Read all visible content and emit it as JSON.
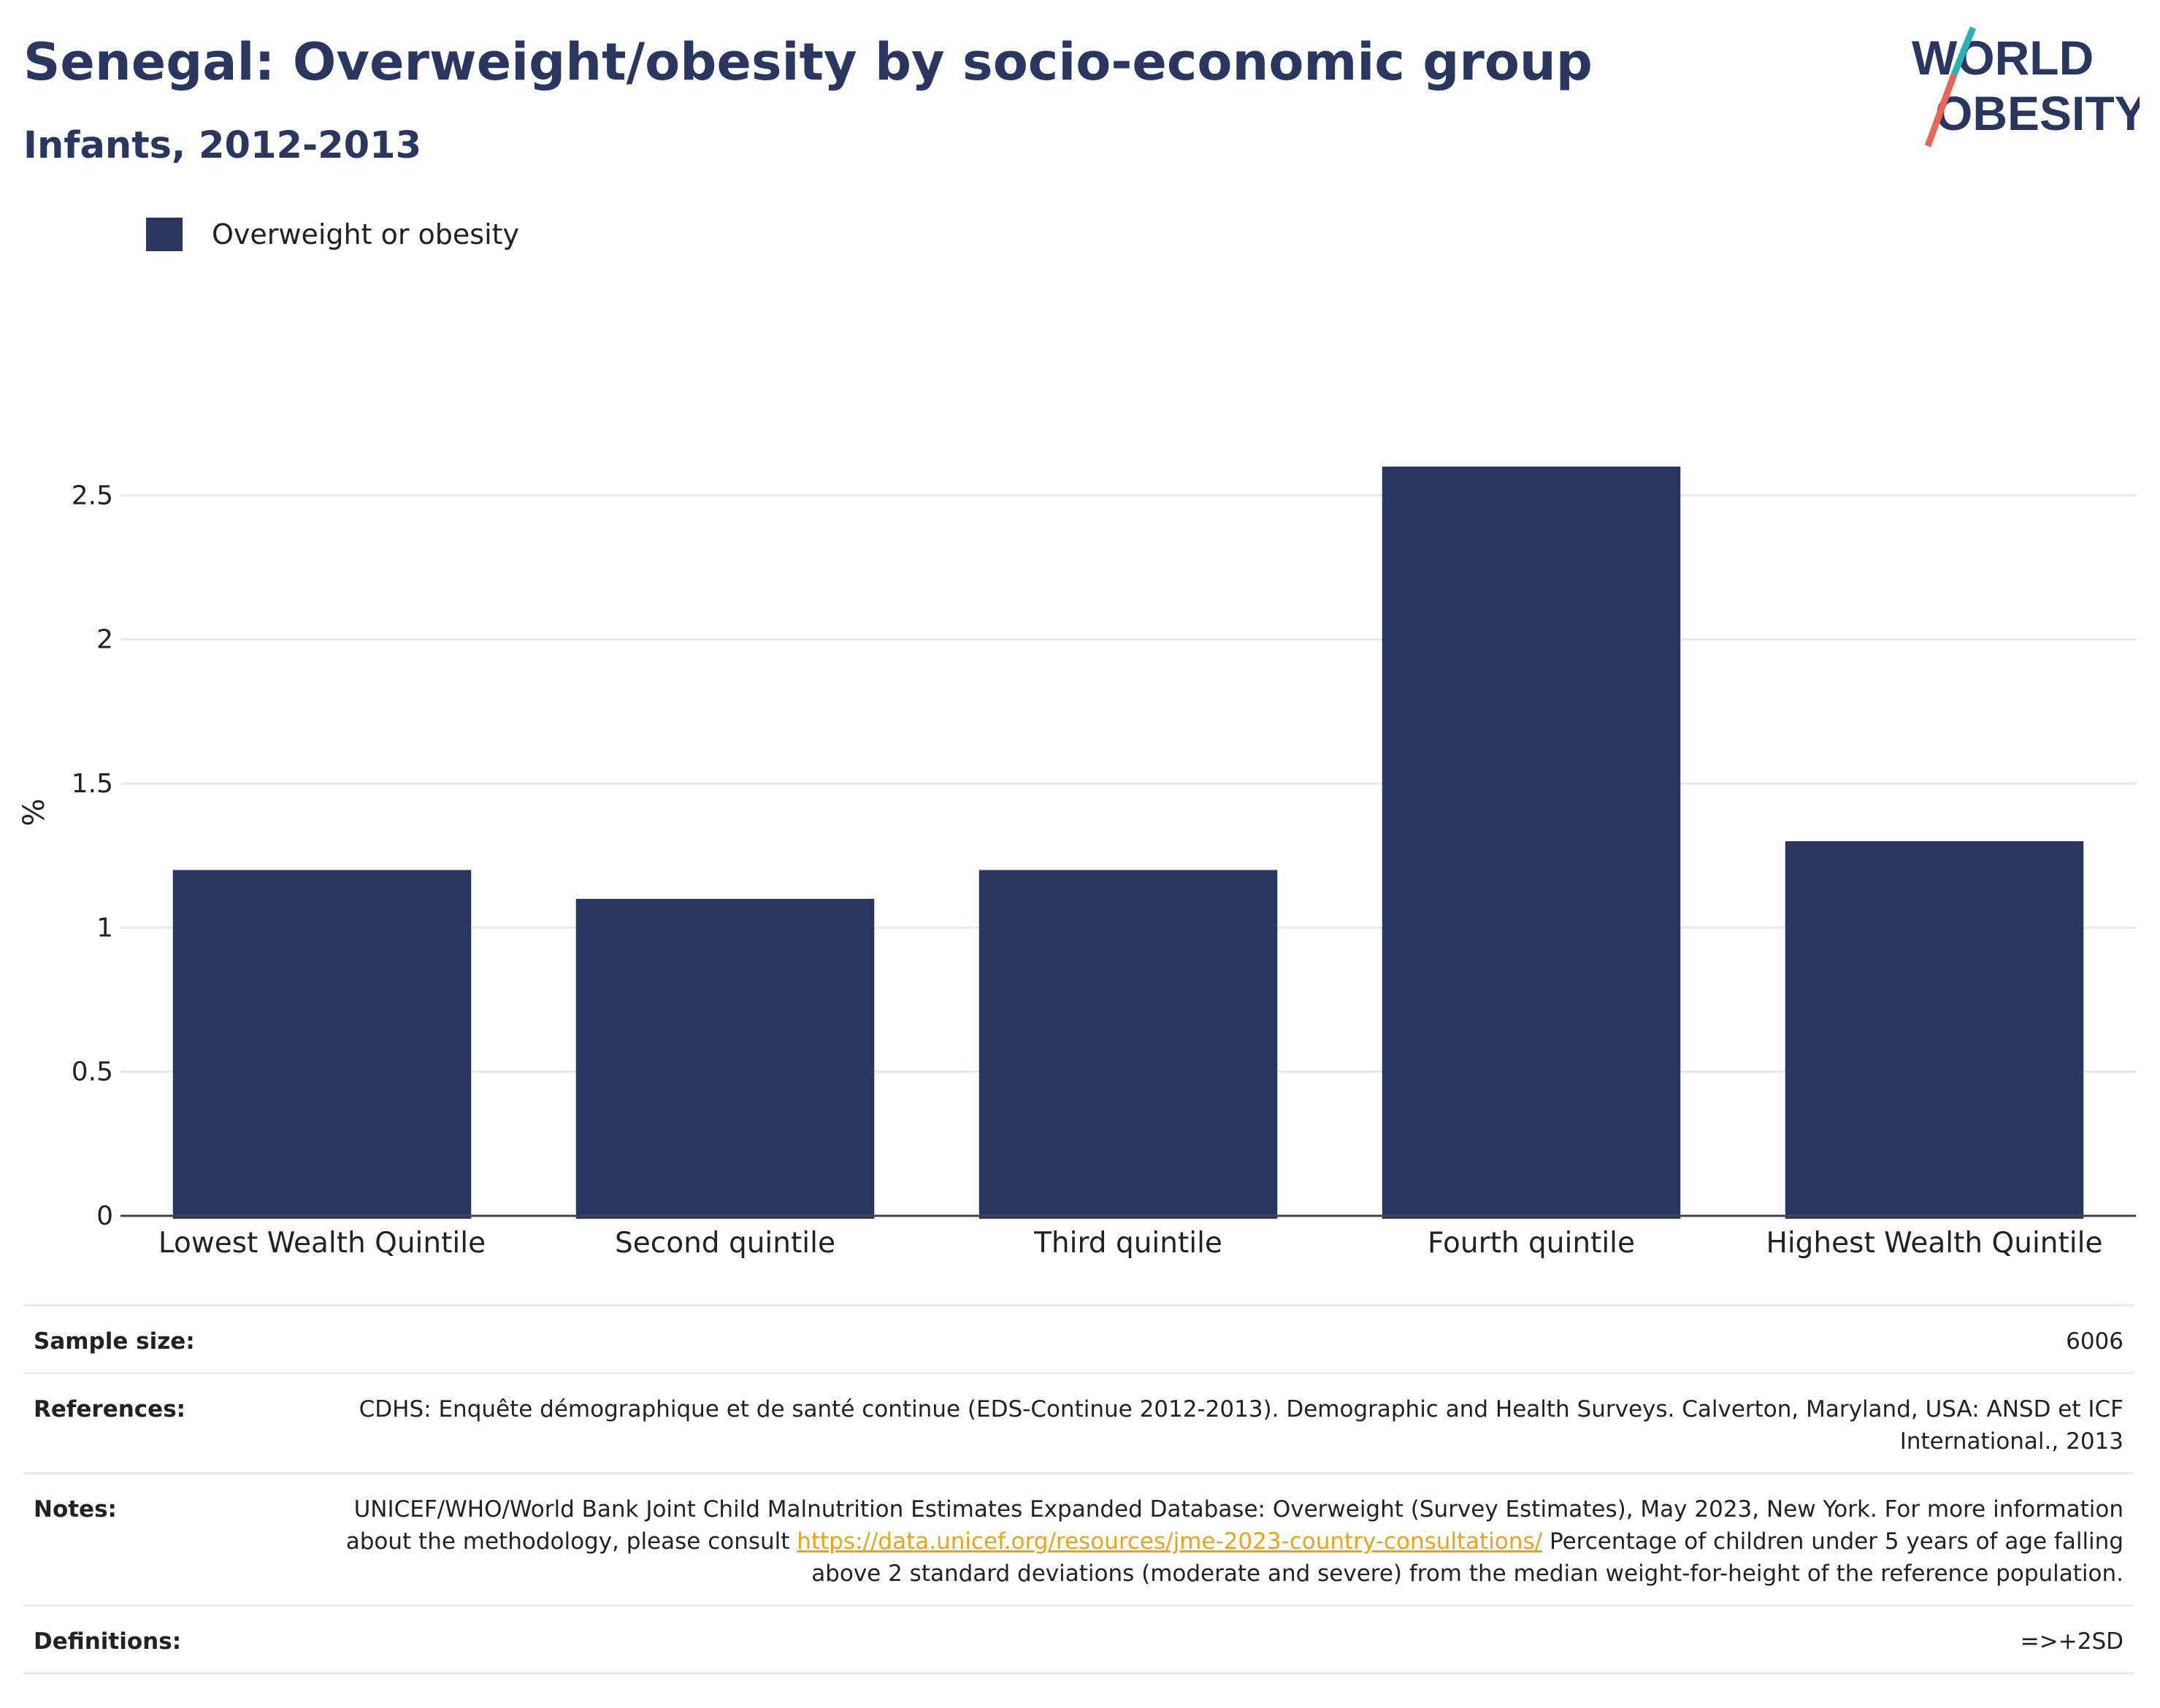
{
  "header": {
    "title": "Senegal: Overweight/obesity by socio-economic group",
    "subtitle": "Infants, 2012-2013"
  },
  "logo": {
    "line1": "WORLD",
    "line2": "OBESITY",
    "accent_teal": "#2bb3b1",
    "accent_coral": "#e8655a"
  },
  "legend": {
    "label": "Overweight or obesity",
    "color": "#2a365f"
  },
  "chart_data": {
    "type": "bar",
    "categories": [
      "Lowest Wealth Quintile",
      "Second quintile",
      "Third quintile",
      "Fourth quintile",
      "Highest Wealth Quintile"
    ],
    "series": [
      {
        "name": "Overweight or obesity",
        "values": [
          1.2,
          1.1,
          1.2,
          2.6,
          1.3
        ],
        "color": "#2a365f"
      }
    ],
    "ylabel": "%",
    "ylim": [
      0,
      2.8
    ],
    "yticks": [
      0,
      0.5,
      1,
      1.5,
      2,
      2.5
    ],
    "ytick_labels": [
      "0",
      "0.5",
      "1",
      "1.5",
      "2",
      "2.5"
    ],
    "grid": true,
    "legend_position": "top-left"
  },
  "info": {
    "sample_size_label": "Sample size:",
    "sample_size_value": "6006",
    "references_label": "References:",
    "references_value": "CDHS: Enquête démographique et de santé continue (EDS-Continue 2012-2013). Demographic and Health Surveys. Calverton, Maryland, USA: ANSD et ICF International., 2013",
    "notes_label": "Notes:",
    "notes_text_before": "UNICEF/WHO/World Bank Joint Child Malnutrition Estimates Expanded Database: Overweight (Survey Estimates), May 2023, New York. For more information about the methodology, please consult ",
    "notes_link": "https://data.unicef.org/resources/jme-2023-country-consultations/",
    "notes_text_after": " Percentage of children under 5 years of age falling above 2 standard deviations (moderate and severe) from the median weight-for-height of the reference population.",
    "definitions_label": "Definitions:",
    "definitions_value": "=>+2SD"
  }
}
